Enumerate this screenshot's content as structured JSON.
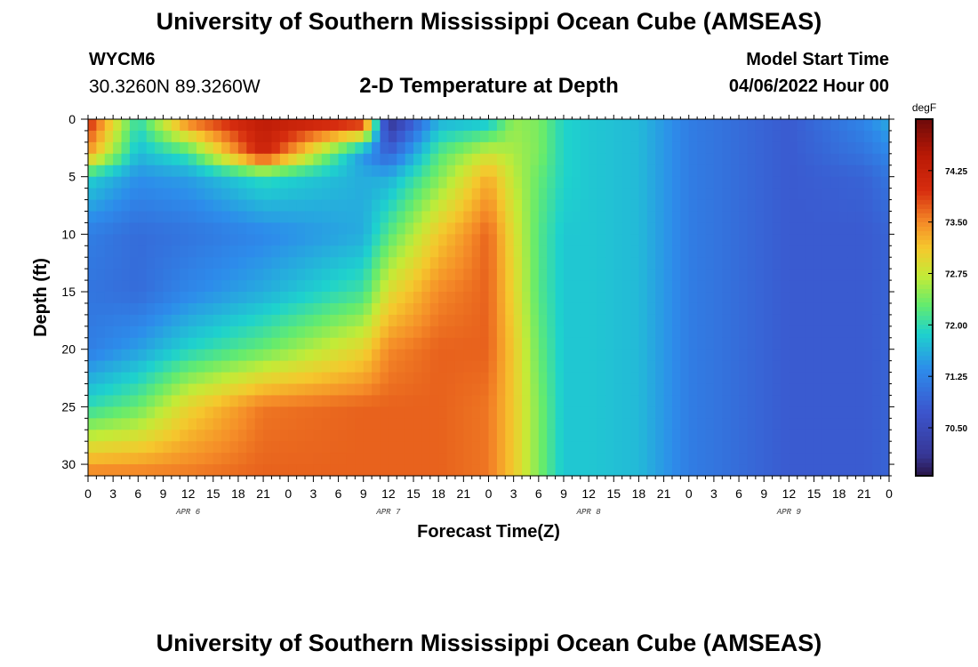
{
  "header": {
    "title": "University of Southern Mississippi Ocean Cube (AMSEAS)",
    "station_id": "WYCM6",
    "coordinates": "30.3260N  89.3260W",
    "plot_title": "2-D Temperature at Depth",
    "start_label": "Model Start Time",
    "start_value": "04/06/2022 Hour 00"
  },
  "footer": {
    "title": "University of Southern Mississippi Ocean Cube (AMSEAS)"
  },
  "chart_data": {
    "type": "heatmap",
    "title": "2-D Temperature at Depth",
    "xlabel": "Forecast Time(Z)",
    "ylabel": "Depth (ft)",
    "x_unit": "hours since model start",
    "xlim": [
      0,
      96
    ],
    "ylim": [
      31,
      0
    ],
    "x_tick_labels": [
      "0",
      "3",
      "6",
      "9",
      "12",
      "15",
      "18",
      "21",
      "0",
      "3",
      "6",
      "9",
      "12",
      "15",
      "18",
      "21",
      "0",
      "3",
      "6",
      "9",
      "12",
      "15",
      "18",
      "21",
      "0",
      "3",
      "6",
      "9",
      "12",
      "15",
      "18",
      "21",
      "0"
    ],
    "y_ticks": [
      0,
      5,
      10,
      15,
      20,
      25,
      30
    ],
    "day_labels": [
      {
        "label": "APR 6",
        "hour": 12
      },
      {
        "label": "APR 7",
        "hour": 36
      },
      {
        "label": "APR 8",
        "hour": 60
      },
      {
        "label": "APR 9",
        "hour": 84
      }
    ],
    "colorbar": {
      "unit": "degF",
      "min": 69.8,
      "max": 75.0,
      "ticks": [
        70.5,
        71.25,
        72.0,
        72.75,
        73.5,
        74.25
      ],
      "tick_labels": [
        "70.50",
        "71.25",
        "72.00",
        "72.75",
        "73.50",
        "74.25"
      ]
    },
    "values_degF": {
      "x_hours": [
        0,
        6,
        12,
        21,
        33,
        36,
        42,
        48,
        51,
        54,
        57,
        60,
        66,
        72,
        84,
        93,
        96
      ],
      "depth_ft": [
        0,
        3,
        5,
        10,
        15,
        20,
        25,
        31
      ],
      "temperature": [
        [
          74.1,
          72.0,
          73.7,
          74.4,
          74.3,
          70.0,
          71.6,
          71.7,
          72.5,
          72.4,
          71.9,
          71.8,
          71.7,
          71.2,
          70.8,
          71.3,
          71.6
        ],
        [
          73.4,
          71.7,
          72.1,
          74.2,
          71.4,
          70.9,
          72.2,
          72.8,
          72.6,
          72.4,
          71.9,
          71.8,
          71.7,
          71.2,
          70.8,
          71.1,
          71.3
        ],
        [
          71.9,
          71.4,
          71.5,
          72.0,
          71.6,
          71.6,
          72.4,
          73.3,
          72.7,
          72.3,
          71.9,
          71.8,
          71.7,
          71.2,
          70.8,
          70.9,
          71.1
        ],
        [
          71.2,
          71.0,
          71.1,
          71.3,
          71.6,
          72.2,
          73.1,
          73.7,
          72.9,
          72.2,
          71.8,
          71.8,
          71.7,
          71.2,
          70.8,
          70.8,
          70.9
        ],
        [
          71.1,
          71.0,
          71.3,
          71.6,
          72.1,
          72.9,
          73.5,
          73.7,
          73.0,
          72.2,
          71.8,
          71.8,
          71.7,
          71.2,
          70.8,
          70.8,
          70.9
        ],
        [
          71.2,
          71.5,
          71.9,
          72.3,
          73.0,
          73.5,
          73.7,
          73.7,
          73.1,
          72.3,
          71.8,
          71.8,
          71.7,
          71.2,
          70.8,
          70.8,
          70.9
        ],
        [
          72.0,
          72.3,
          73.0,
          73.6,
          73.7,
          73.7,
          73.7,
          73.6,
          73.1,
          72.4,
          71.8,
          71.8,
          71.7,
          71.2,
          70.8,
          70.8,
          70.9
        ],
        [
          73.6,
          73.6,
          73.6,
          73.7,
          73.7,
          73.7,
          73.7,
          73.6,
          73.1,
          72.4,
          71.8,
          71.8,
          71.7,
          71.2,
          70.8,
          70.8,
          70.9
        ]
      ]
    },
    "grid": false
  }
}
